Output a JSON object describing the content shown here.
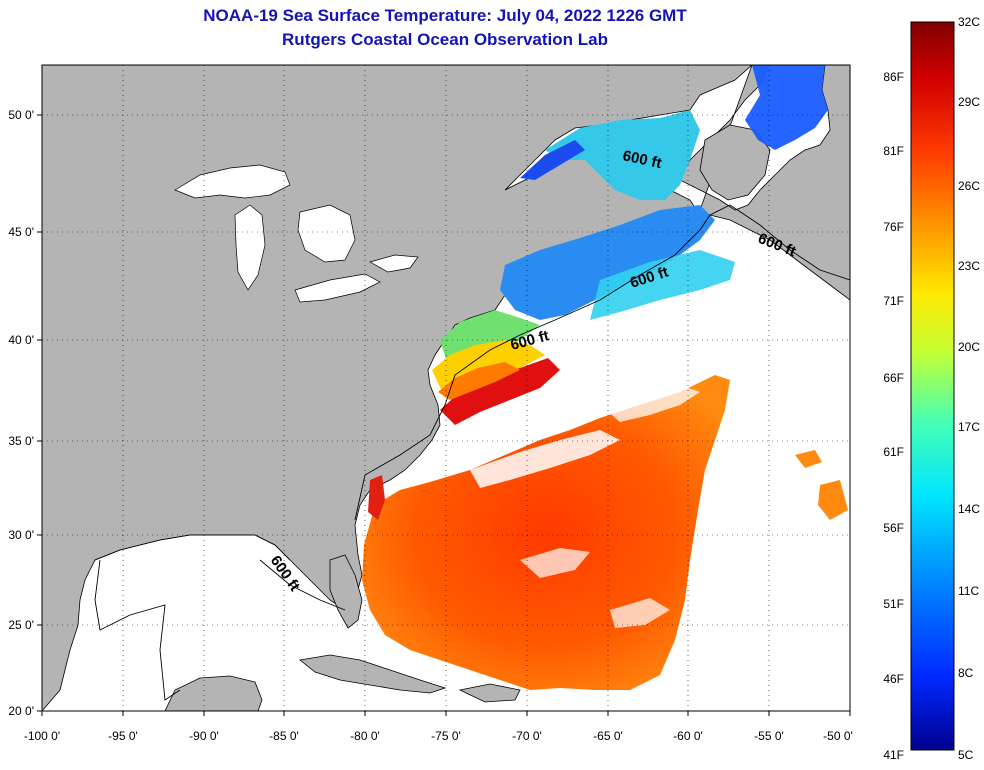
{
  "header": {
    "title": "NOAA-19 Sea Surface Temperature:  July 04, 2022 1226 GMT",
    "subtitle": "Rutgers Coastal Ocean Observation Lab"
  },
  "map": {
    "lon_range": [
      -100,
      -50
    ],
    "lat_range": [
      20,
      52.5
    ],
    "lon_ticks": [
      "-100 0'",
      "-95 0'",
      "-90 0'",
      "-85 0'",
      "-80 0'",
      "-75 0'",
      "-70 0'",
      "-65 0'",
      "-60 0'",
      "-55 0'",
      "-50 0'"
    ],
    "lat_ticks": [
      "20 0'",
      "25 0'",
      "30 0'",
      "35 0'",
      "40 0'",
      "45 0'",
      "50 0'"
    ],
    "isobath_label": "600 ft",
    "land_color": "#b4b4b4",
    "nodata_color": "#ffffff"
  },
  "colorbar": {
    "celsius_labels": [
      "32C",
      "29C",
      "26C",
      "23C",
      "20C",
      "17C",
      "14C",
      "11C",
      "8C",
      "5C"
    ],
    "fahrenheit_labels": [
      "86F",
      "81F",
      "76F",
      "71F",
      "66F",
      "61F",
      "56F",
      "51F",
      "46F",
      "41F"
    ],
    "colors": [
      "#00008c",
      "#0028ff",
      "#0096ff",
      "#00e6ff",
      "#46ffb4",
      "#c8ff32",
      "#ffe600",
      "#ff9600",
      "#ff3c00",
      "#d20000",
      "#800000"
    ]
  }
}
